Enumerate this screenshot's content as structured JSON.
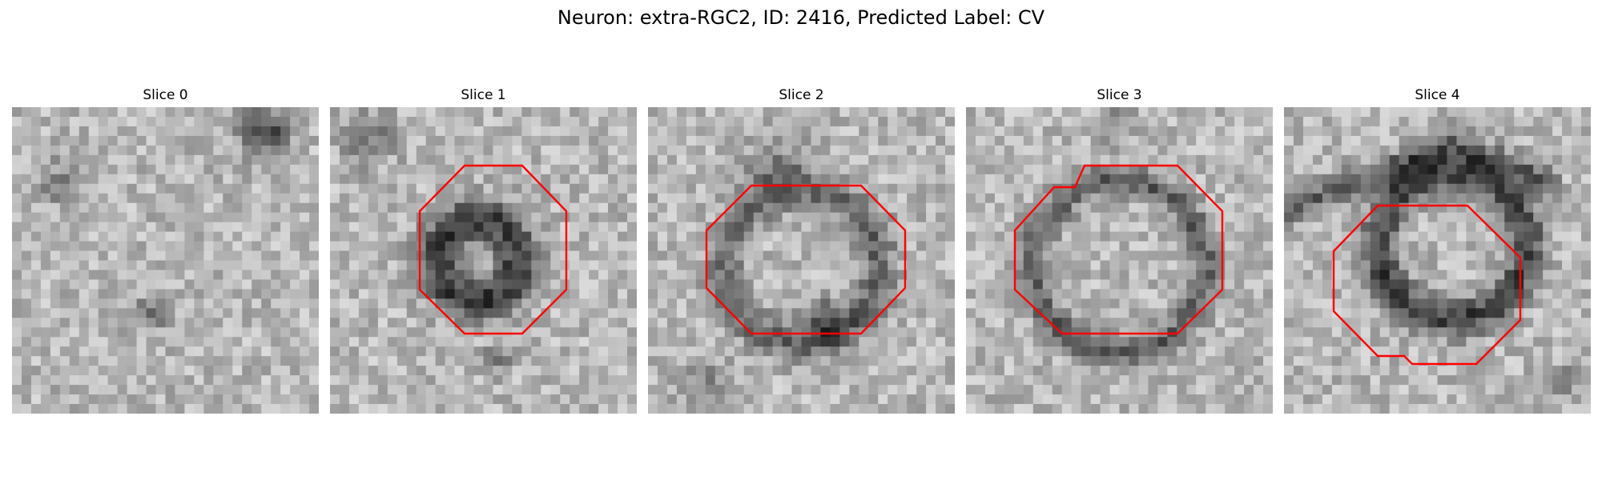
{
  "figure": {
    "title": "Neuron: extra-RGC2, ID: 2416, Predicted Label: CV"
  },
  "panels": [
    {
      "label": "Slice 0",
      "has_outline": false
    },
    {
      "label": "Slice 1",
      "has_outline": true
    },
    {
      "label": "Slice 2",
      "has_outline": true
    },
    {
      "label": "Slice 3",
      "has_outline": true
    },
    {
      "label": "Slice 4",
      "has_outline": true
    }
  ],
  "colors": {
    "outline": "#ff0000",
    "background": "#ffffff"
  }
}
